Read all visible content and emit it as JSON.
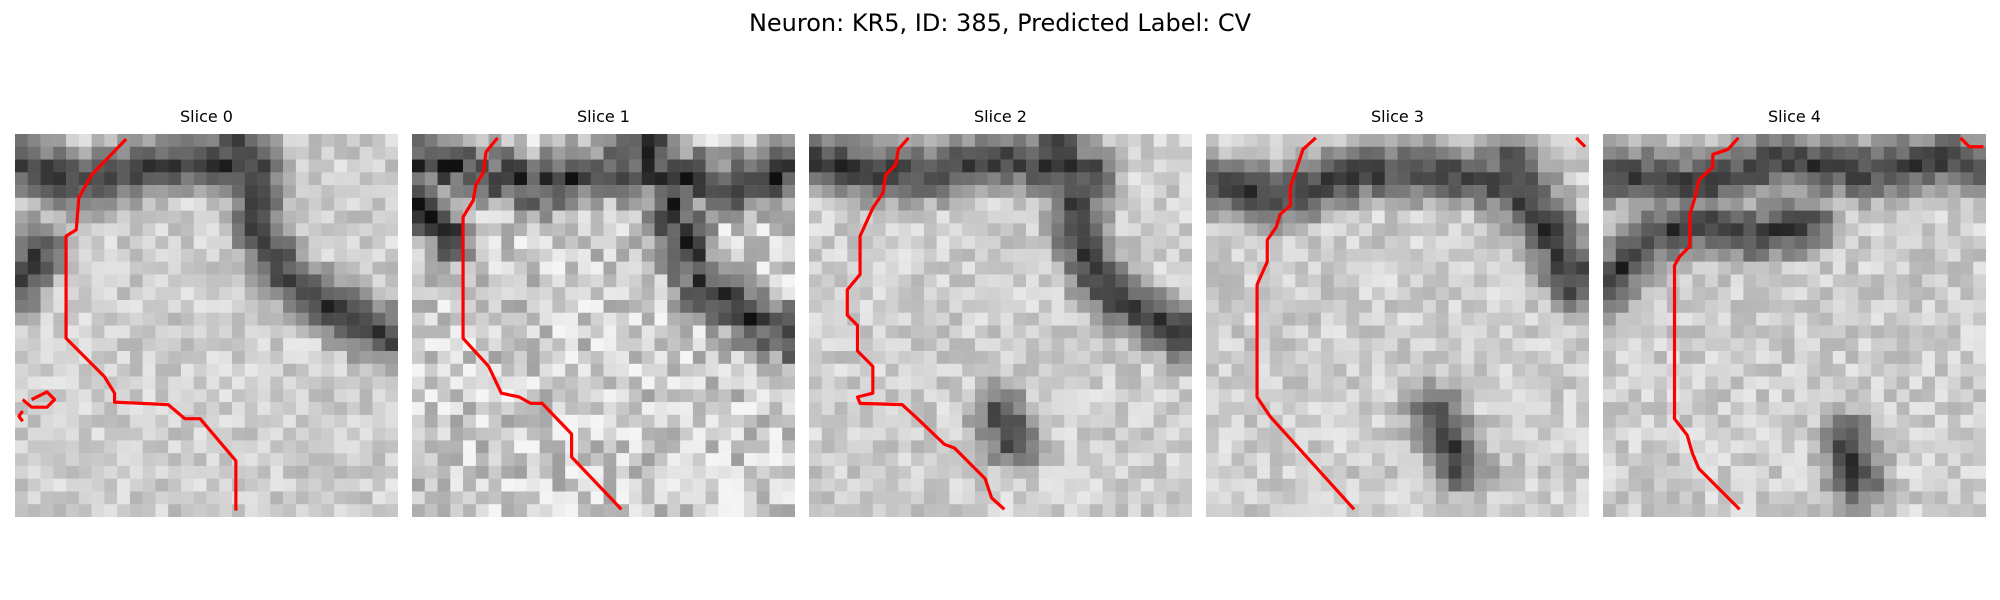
{
  "figure": {
    "title": "Neuron: KR5, ID: 385, Predicted Label: CV"
  },
  "panels": [
    {
      "title": "Slice 0"
    },
    {
      "title": "Slice 1"
    },
    {
      "title": "Slice 2"
    },
    {
      "title": "Slice 3"
    },
    {
      "title": "Slice 4"
    }
  ],
  "colors": {
    "contour": "#ff0000",
    "image_dark": "#111111",
    "image_light": "#efefef"
  }
}
